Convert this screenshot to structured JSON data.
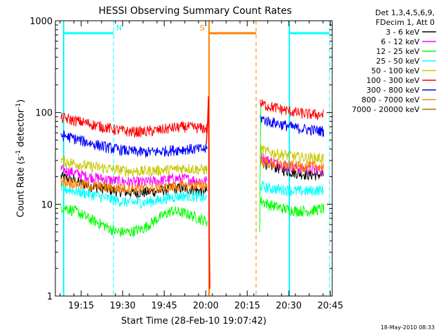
{
  "chart_data": {
    "type": "line",
    "title": "HESSI Observing Summary Count Rates",
    "xlabel": "Start Time (28-Feb-10 19:07:42)",
    "ylabel_parts": [
      "Count Rate (s",
      "-1",
      " detector",
      "-1",
      ")"
    ],
    "yscale": "log",
    "ylim": [
      1,
      1000
    ],
    "xlim_minutes": [
      -2,
      98
    ],
    "y_ticks": [
      {
        "value": 1,
        "label": "1"
      },
      {
        "value": 10,
        "label": "10"
      },
      {
        "value": 100,
        "label": "100"
      },
      {
        "value": 1000,
        "label": "1000"
      }
    ],
    "x_ticks": [
      {
        "minute": 7.3,
        "label": "19:15"
      },
      {
        "minute": 22.3,
        "label": "19:30"
      },
      {
        "minute": 37.3,
        "label": "19:45"
      },
      {
        "minute": 52.3,
        "label": "20:00"
      },
      {
        "minute": 67.3,
        "label": "20:15"
      },
      {
        "minute": 82.3,
        "label": "20:30"
      },
      {
        "minute": 97.3,
        "label": "20:45"
      }
    ],
    "legend": {
      "header": [
        "Det 1,3,4,5,6,9,",
        "FDecim 1, Att 0"
      ],
      "position": "right",
      "entries": [
        {
          "label": "3 - 6 keV",
          "color": "#000000"
        },
        {
          "label": "6 - 12 keV",
          "color": "#ff00ff"
        },
        {
          "label": "12 - 25 keV",
          "color": "#00ff00"
        },
        {
          "label": "25 - 50 keV",
          "color": "#00ffff"
        },
        {
          "label": "50 - 100 keV",
          "color": "#c8c800"
        },
        {
          "label": "100 - 300 keV",
          "color": "#ff0000"
        },
        {
          "label": "300 - 800 keV",
          "color": "#0000ff"
        },
        {
          "label": "800 - 7000 keV",
          "color": "#ff8000"
        },
        {
          "label": "7000 - 20000 keV",
          "color": "#a07000"
        }
      ]
    },
    "series": [
      {
        "name": "3 - 6 keV",
        "color": "#000000",
        "segment1": {
          "x": [
            0,
            5,
            10,
            15,
            20,
            25,
            30,
            35,
            40,
            45,
            50,
            53
          ],
          "y": [
            20,
            18,
            16,
            15,
            14,
            13.5,
            13.5,
            14,
            15,
            15,
            14,
            14
          ]
        },
        "segment2": {
          "x": [
            72,
            75,
            80,
            85,
            90,
            95
          ],
          "y": [
            30,
            27,
            24,
            22,
            21,
            21
          ]
        }
      },
      {
        "name": "6 - 12 keV",
        "color": "#ff00ff",
        "segment1": {
          "x": [
            0,
            5,
            10,
            15,
            20,
            25,
            30,
            35,
            40,
            45,
            50,
            53
          ],
          "y": [
            24,
            22,
            20,
            19,
            18,
            17.5,
            17.5,
            18,
            19,
            19,
            18,
            18
          ]
        },
        "segment2": {
          "x": [
            72,
            75,
            80,
            85,
            90,
            95
          ],
          "y": [
            33,
            30,
            27,
            25,
            24,
            24
          ]
        }
      },
      {
        "name": "12 - 25 keV",
        "color": "#00ff00",
        "segment1": {
          "x": [
            0,
            5,
            10,
            15,
            20,
            25,
            30,
            35,
            40,
            45,
            50,
            53
          ],
          "y": [
            9.5,
            8.5,
            7,
            6,
            5,
            5,
            5.5,
            7,
            8.5,
            8,
            7,
            6.5
          ]
        },
        "segment2": {
          "x": [
            72,
            75,
            80,
            85,
            90,
            95
          ],
          "y": [
            11,
            10,
            9,
            8.5,
            8.5,
            9
          ]
        }
      },
      {
        "name": "25 - 50 keV",
        "color": "#00ffff",
        "segment1": {
          "x": [
            0,
            5,
            10,
            15,
            20,
            25,
            30,
            35,
            40,
            45,
            50,
            53
          ],
          "y": [
            15,
            14,
            13,
            12,
            11,
            10.5,
            10.5,
            11,
            12,
            12.5,
            12,
            11.5
          ]
        },
        "segment2": {
          "x": [
            72,
            75,
            80,
            85,
            90,
            95
          ],
          "y": [
            16,
            15,
            14.5,
            14,
            14,
            14.5
          ]
        }
      },
      {
        "name": "50 - 100 keV",
        "color": "#c8c800",
        "segment1": {
          "x": [
            0,
            5,
            10,
            15,
            20,
            25,
            30,
            35,
            40,
            45,
            50,
            53
          ],
          "y": [
            30,
            28,
            26,
            25,
            24,
            23,
            23,
            23.5,
            24,
            25,
            24,
            24
          ]
        },
        "segment2": {
          "x": [
            72,
            75,
            80,
            85,
            90,
            95
          ],
          "y": [
            40,
            37,
            35,
            33,
            32,
            32
          ]
        }
      },
      {
        "name": "100 - 300 keV",
        "color": "#ff0000",
        "segment1": {
          "x": [
            0,
            5,
            10,
            15,
            20,
            25,
            30,
            35,
            40,
            45,
            50,
            53
          ],
          "y": [
            88,
            82,
            76,
            70,
            65,
            62,
            62,
            64,
            68,
            70,
            68,
            67
          ]
        },
        "segment2": {
          "x": [
            72,
            75,
            80,
            85,
            90,
            95
          ],
          "y": [
            125,
            118,
            108,
            100,
            96,
            95
          ]
        }
      },
      {
        "name": "300 - 800 keV",
        "color": "#0000ff",
        "segment1": {
          "x": [
            0,
            5,
            10,
            15,
            20,
            25,
            30,
            35,
            40,
            45,
            50,
            53
          ],
          "y": [
            57,
            52,
            47,
            43,
            40,
            38,
            37,
            37.5,
            39,
            40,
            40,
            40
          ]
        },
        "segment2": {
          "x": [
            72,
            75,
            80,
            85,
            90,
            95
          ],
          "y": [
            87,
            80,
            74,
            68,
            65,
            63
          ]
        }
      },
      {
        "name": "800 - 7000 keV",
        "color": "#ff8000",
        "segment1": {
          "x": [
            0,
            5,
            10,
            15,
            20,
            25,
            30,
            35,
            40,
            45,
            50,
            53
          ],
          "y": [
            18,
            17,
            16,
            15.5,
            15,
            15,
            15,
            15,
            15.5,
            16,
            16,
            16
          ]
        },
        "segment2": {
          "x": [
            72,
            75,
            80,
            85,
            90,
            95
          ],
          "y": [
            30,
            28,
            27,
            26,
            26,
            26
          ]
        }
      },
      {
        "name": "7000 - 20000 keV",
        "color": "#a07000",
        "segment1": {
          "x": [],
          "y": []
        },
        "segment2": {
          "x": [],
          "y": []
        }
      }
    ],
    "gap_minutes": [
      53,
      72
    ],
    "saa_markers": [
      {
        "type": "start",
        "minute": 1,
        "color": "#00ffff",
        "style": "solid"
      },
      {
        "type": "end",
        "minute": 19,
        "color": "#00ffff",
        "style": "dashed"
      },
      {
        "type": "start",
        "minute": 82.5,
        "color": "#00ffff",
        "style": "solid"
      },
      {
        "type": "end",
        "minute": 97,
        "color": "#00ffff",
        "style": "dashed"
      },
      {
        "type": "start",
        "minute": 53.5,
        "color": "#ff8000",
        "style": "solid"
      },
      {
        "type": "end",
        "minute": 70.5,
        "color": "#ff8000",
        "style": "dashed"
      }
    ],
    "top_bars": [
      {
        "from": 1,
        "to": 19,
        "color": "#00ffff",
        "label": "N"
      },
      {
        "from": 53.5,
        "to": 70.5,
        "color": "#ff8000",
        "label": "S"
      },
      {
        "from": 82.5,
        "to": 97,
        "color": "#00ffff",
        "label": ""
      }
    ],
    "footer_timestamp": "18-May-2010 08:33"
  }
}
